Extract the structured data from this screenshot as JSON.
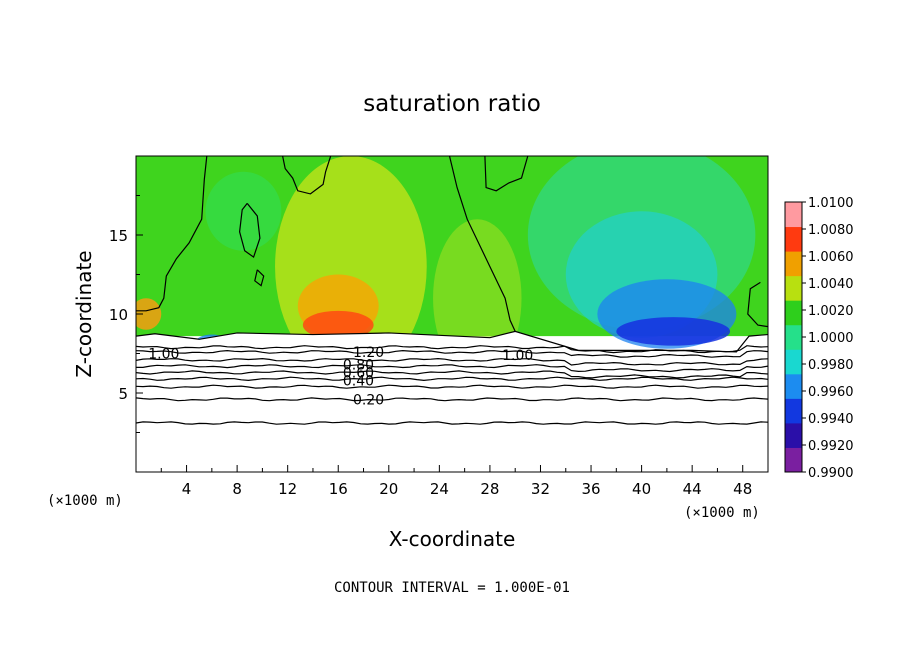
{
  "chart_data": {
    "type": "heatmap",
    "title": "saturation ratio",
    "xlabel": "X-coordinate",
    "ylabel": "Z-coordinate",
    "x_unit_label": "(×1000 m)",
    "y_unit_label": "(×1000 m)",
    "xlim": [
      0,
      50
    ],
    "ylim": [
      0,
      20
    ],
    "x_ticks": [
      "4",
      "8",
      "12",
      "16",
      "20",
      "24",
      "28",
      "32",
      "36",
      "40",
      "44",
      "48"
    ],
    "y_ticks": [
      "5",
      "10",
      "15"
    ],
    "footer": "CONTOUR INTERVAL = 1.000E-01",
    "colorbar": {
      "range": [
        0.99,
        1.01
      ],
      "labels": [
        "1.0100",
        "1.0080",
        "1.0060",
        "1.0040",
        "1.0020",
        "1.0000",
        "0.9980",
        "0.9960",
        "0.9940",
        "0.9920",
        "0.9900"
      ],
      "colors": [
        "#7a1fa0",
        "#2a0fa8",
        "#1238e0",
        "#1c8cf0",
        "#19d8d0",
        "#25e08a",
        "#2ecf1c",
        "#b8e010",
        "#f0a000",
        "#ff3a10",
        "#ff9aa0"
      ]
    },
    "contours": [
      {
        "label": "0.20",
        "z": 4.6
      },
      {
        "label": "0.40",
        "z": 5.9
      },
      {
        "label": "0.60",
        "z": 6.7
      },
      {
        "label": "0.80",
        "z": 7.1
      },
      {
        "label": "1.00",
        "z": 7.6
      },
      {
        "label": "1.20",
        "z": 7.9
      }
    ],
    "contour_label_positions": [
      {
        "label": "0.20",
        "x": 18.4,
        "z": 4.6
      },
      {
        "label": "0.40",
        "x": 17.6,
        "z": 5.8
      },
      {
        "label": "0.60",
        "x": 17.6,
        "z": 6.3
      },
      {
        "label": "0.80",
        "x": 17.6,
        "z": 6.8
      },
      {
        "label": "1.20",
        "x": 18.4,
        "z": 7.6
      },
      {
        "label": "1.00",
        "x": 2.2,
        "z": 7.5
      },
      {
        "label": "1.00",
        "x": 30.2,
        "z": 7.4
      }
    ],
    "grid": false
  }
}
